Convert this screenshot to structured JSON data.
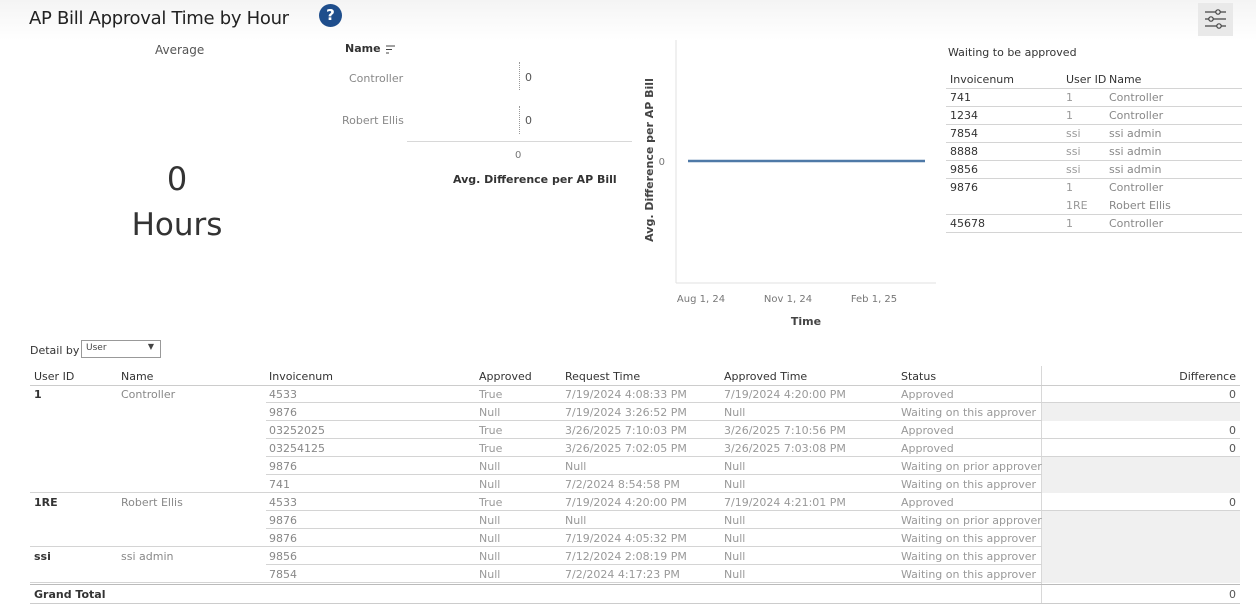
{
  "header": {
    "title": "AP Bill Approval Time by Hour",
    "help_label": "?"
  },
  "kpi": {
    "label": "Average",
    "value": "0",
    "unit": "Hours"
  },
  "bar_chart": {
    "sort_header": "Name",
    "rows": [
      {
        "label": "Controller",
        "value": "0"
      },
      {
        "label": "Robert Ellis",
        "value": "0"
      }
    ],
    "x_tick": "0",
    "x_label": "Avg. Difference per AP Bill"
  },
  "chart_data": {
    "type": "line",
    "title": "",
    "xlabel": "Time",
    "ylabel": "Avg. Difference per AP Bill",
    "x_ticks": [
      "Aug 1, 24",
      "Nov 1, 24",
      "Feb 1, 25"
    ],
    "y_ticks": [
      "0"
    ],
    "series": [
      {
        "x": [
          "Jul 2024",
          "Mar 2025"
        ],
        "values": [
          0,
          0
        ],
        "color": "#4e79a7"
      }
    ],
    "grid": false
  },
  "waiting": {
    "title": "Waiting to be approved",
    "headers": [
      "Invoicenum",
      "User ID",
      "Name"
    ],
    "rows": [
      [
        "741",
        "1",
        "Controller"
      ],
      [
        "1234",
        "1",
        "Controller"
      ],
      [
        "7854",
        "ssi",
        "ssi admin"
      ],
      [
        "8888",
        "ssi",
        "ssi admin"
      ],
      [
        "9856",
        "ssi",
        "ssi admin"
      ],
      [
        "9876",
        "1",
        "Controller"
      ],
      [
        "",
        "1RE",
        "Robert Ellis"
      ],
      [
        "45678",
        "1",
        "Controller"
      ]
    ]
  },
  "detail": {
    "label": "Detail by",
    "select_value": "User",
    "headers": [
      "User ID",
      "Name",
      "Invoicenum",
      "Approved",
      "Request Time",
      "Approved Time",
      "Status",
      "Difference"
    ],
    "rows": [
      [
        "1",
        "Controller",
        "4533",
        "True",
        "7/19/2024 4:08:33 PM",
        "7/19/2024 4:20:00 PM",
        "Approved",
        "0"
      ],
      [
        "",
        "",
        "9876",
        "Null",
        "7/19/2024 3:26:52 PM",
        "Null",
        "Waiting on this approver",
        ""
      ],
      [
        "",
        "",
        "03252025",
        "True",
        "3/26/2025 7:10:03 PM",
        "3/26/2025 7:10:56 PM",
        "Approved",
        "0"
      ],
      [
        "",
        "",
        "03254125",
        "True",
        "3/26/2025 7:02:05 PM",
        "3/26/2025 7:03:08 PM",
        "Approved",
        "0"
      ],
      [
        "",
        "",
        "9876",
        "Null",
        "Null",
        "Null",
        "Waiting on prior approver",
        ""
      ],
      [
        "",
        "",
        "741",
        "Null",
        "7/2/2024 8:54:58 PM",
        "Null",
        "Waiting on this approver",
        ""
      ],
      [
        "1RE",
        "Robert Ellis",
        "4533",
        "True",
        "7/19/2024 4:20:00 PM",
        "7/19/2024 4:21:01 PM",
        "Approved",
        "0"
      ],
      [
        "",
        "",
        "9876",
        "Null",
        "Null",
        "Null",
        "Waiting on prior approver",
        ""
      ],
      [
        "",
        "",
        "9876",
        "Null",
        "7/19/2024 4:05:32 PM",
        "Null",
        "Waiting on this approver",
        ""
      ],
      [
        "ssi",
        "ssi admin",
        "9856",
        "Null",
        "7/12/2024 2:08:19 PM",
        "Null",
        "Waiting on this approver",
        ""
      ],
      [
        "",
        "",
        "7854",
        "Null",
        "7/2/2024 4:17:23 PM",
        "Null",
        "Waiting on this approver",
        ""
      ]
    ],
    "grand_total_label": "Grand Total",
    "grand_total_value": "0"
  },
  "colors": {
    "line": "#4e79a7",
    "help_icon": "#1f4e8c"
  }
}
